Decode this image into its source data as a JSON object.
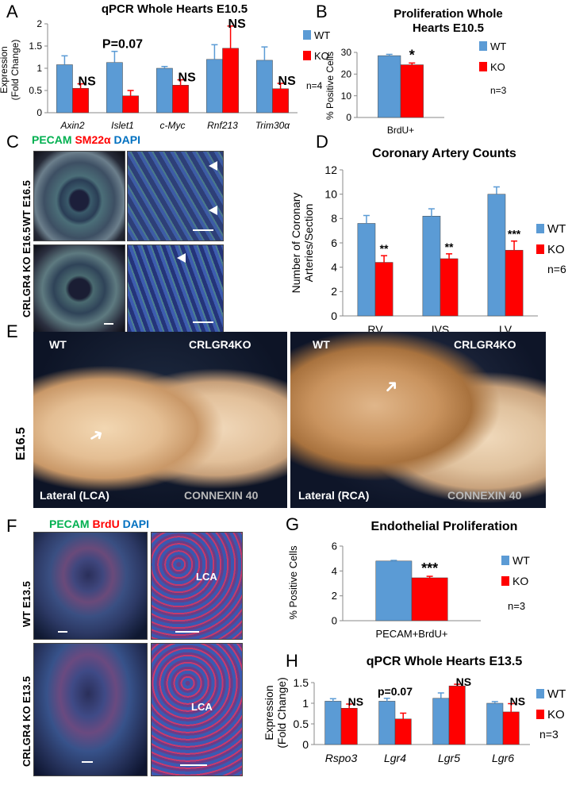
{
  "panels": {
    "A": "A",
    "B": "B",
    "C": "C",
    "D": "D",
    "E": "E",
    "F": "F",
    "G": "G",
    "H": "H"
  },
  "chart_data": [
    {
      "id": "A",
      "type": "bar",
      "title": "qPCR Whole Hearts E10.5",
      "ylabel": "Expression (Fold Change)",
      "ylabel_lines": [
        "Expression",
        "(Fold Change)"
      ],
      "ylim": [
        0,
        2
      ],
      "yticks": [
        "0",
        "0.5",
        "1",
        "1.5",
        "2"
      ],
      "categories": [
        "Axin2",
        "Islet1",
        "c-Myc",
        "Rnf213",
        "Trim30α"
      ],
      "series": [
        {
          "name": "WT",
          "color": "#5b9bd5",
          "values": [
            1.08,
            1.13,
            1.0,
            1.2,
            1.18
          ],
          "err": [
            0.2,
            0.25,
            0.04,
            0.33,
            0.3
          ]
        },
        {
          "name": "KO",
          "color": "#ff0000",
          "values": [
            0.55,
            0.38,
            0.62,
            1.45,
            0.54
          ],
          "err": [
            0.1,
            0.12,
            0.12,
            0.5,
            0.12
          ]
        }
      ],
      "annotations": [
        "NS",
        "P=0.07",
        "NS",
        "NS",
        "NS"
      ],
      "note": "n=4",
      "grid": false,
      "legend": "right"
    },
    {
      "id": "B",
      "type": "bar",
      "title_lines": [
        "Proliferation Whole",
        "Hearts  E10.5"
      ],
      "ylabel": "% Positive Cells",
      "ylim": [
        0,
        30
      ],
      "yticks": [
        "0",
        "10",
        "20",
        "30"
      ],
      "categories": [
        "BrdU+"
      ],
      "series": [
        {
          "name": "WT",
          "color": "#5b9bd5",
          "values": [
            28.5
          ],
          "err": [
            0.6
          ]
        },
        {
          "name": "KO",
          "color": "#ff0000",
          "values": [
            24.3
          ],
          "err": [
            0.8
          ]
        }
      ],
      "annotations": [
        "*"
      ],
      "note": "n=3",
      "grid": false,
      "legend": "right"
    },
    {
      "id": "D",
      "type": "bar",
      "title": "Coronary Artery Counts",
      "ylabel": "Number of Coronary Arteries/Section",
      "ylabel_lines": [
        "Number of Coronary",
        "Arteries/Section"
      ],
      "ylim": [
        0,
        12
      ],
      "yticks": [
        "0",
        "2",
        "4",
        "6",
        "8",
        "10",
        "12"
      ],
      "categories": [
        "RV",
        "IVS",
        "LV"
      ],
      "series": [
        {
          "name": "WT",
          "color": "#5b9bd5",
          "values": [
            7.6,
            8.2,
            10.0
          ],
          "err": [
            0.65,
            0.6,
            0.6
          ]
        },
        {
          "name": "KO",
          "color": "#ff0000",
          "values": [
            4.4,
            4.7,
            5.4
          ],
          "err": [
            0.55,
            0.4,
            0.75
          ]
        }
      ],
      "annotations": [
        "**",
        "**",
        "***"
      ],
      "note": "n=6",
      "grid": false,
      "legend": "right"
    },
    {
      "id": "G",
      "type": "bar",
      "title": "Endothelial Proliferation",
      "ylabel": "% Positive Cells",
      "ylim": [
        0,
        6
      ],
      "yticks": [
        "0",
        "2",
        "4",
        "6"
      ],
      "categories": [
        "PECAM+BrdU+"
      ],
      "series": [
        {
          "name": "WT",
          "color": "#5b9bd5",
          "values": [
            4.8
          ],
          "err": [
            0.05
          ]
        },
        {
          "name": "KO",
          "color": "#ff0000",
          "values": [
            3.45
          ],
          "err": [
            0.12
          ]
        }
      ],
      "annotations": [
        "***"
      ],
      "note": "n=3",
      "grid": false,
      "legend": "right"
    },
    {
      "id": "H",
      "type": "bar",
      "title": "qPCR Whole Hearts E13.5",
      "ylabel": "Expression (Fold Change)",
      "ylabel_lines": [
        "Expression",
        "(Fold Change)"
      ],
      "ylim": [
        0,
        1.5
      ],
      "yticks": [
        "0",
        "0.5",
        "1",
        "1.5"
      ],
      "categories": [
        "Rspo3",
        "Lgr4",
        "Lgr5",
        "Lgr6"
      ],
      "series": [
        {
          "name": "WT",
          "color": "#5b9bd5",
          "values": [
            1.05,
            1.05,
            1.12,
            1.0
          ],
          "err": [
            0.06,
            0.07,
            0.13,
            0.04
          ]
        },
        {
          "name": "KO",
          "color": "#ff0000",
          "values": [
            0.88,
            0.62,
            1.42,
            0.79
          ],
          "err": [
            0.1,
            0.14,
            0.04,
            0.2
          ]
        }
      ],
      "annotations": [
        "NS",
        "p=0.07",
        "NS",
        "NS"
      ],
      "note": "n=3",
      "grid": false,
      "legend": "right"
    }
  ],
  "panelC": {
    "stain": [
      "PECAM",
      "SM22α",
      "DAPI"
    ],
    "stain_colors": [
      "#00b050",
      "#ff0000",
      "#0070c0"
    ],
    "row_labels": [
      "WT E16.5",
      "CRLGR4 KO E16.5"
    ]
  },
  "panelE": {
    "stage": "E16.5",
    "left": {
      "wt": "WT",
      "ko": "CRLGR4KO",
      "view": "Lateral (LCA)",
      "marker": "CONNEXIN 40"
    },
    "right": {
      "wt": "WT",
      "ko": "CRLGR4KO",
      "view": "Lateral (RCA)",
      "marker": "CONNEXIN 40"
    }
  },
  "panelF": {
    "stain": [
      "PECAM",
      "BrdU",
      "DAPI"
    ],
    "stain_colors": [
      "#00b050",
      "#ff0000",
      "#0070c0"
    ],
    "row_labels": [
      "WT E13.5",
      "CRLGR4 KO E13.5"
    ],
    "vessel_label": "LCA"
  }
}
